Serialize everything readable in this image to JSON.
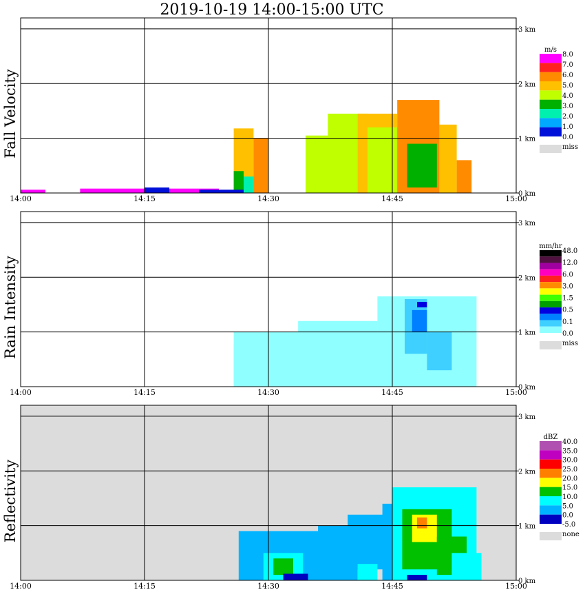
{
  "title": "2019-10-19   14:00-15:00 UTC",
  "colors": {
    "grid": "#000000",
    "missing": "#dcdcdc",
    "white_echo": "#ffffff"
  },
  "chart_data": [
    {
      "type": "heatmap",
      "name": "fall_velocity",
      "ylabel": "Fall Velocity",
      "x_ticks": [
        "14:00",
        "14:15",
        "14:30",
        "14:45",
        "15:00"
      ],
      "x_range": [
        "14:00",
        "15:00"
      ],
      "y_ticks": [
        "0 km",
        "1 km",
        "2 km",
        "3 km"
      ],
      "y_range_km": [
        0,
        3.2
      ],
      "background": "#ffffff",
      "colorbar": {
        "unit": "m/s",
        "labels": [
          "8.0",
          "7.0",
          "6.0",
          "5.0",
          "4.0",
          "3.0",
          "2.0",
          "1.0",
          "0.0"
        ],
        "colors": [
          "#ff00ff",
          "#ff2020",
          "#ff8c00",
          "#ffc000",
          "#c0ff00",
          "#00b000",
          "#00f0b0",
          "#00a8ff",
          "#0010d8"
        ],
        "missing_label": "miss"
      },
      "echoes": [
        {
          "t0": 14.43,
          "t1": 14.47,
          "h0": 0,
          "h1": 1.18,
          "level": 5
        },
        {
          "t0": 14.43,
          "t1": 14.45,
          "h0": 0,
          "h1": 0.4,
          "level": 3
        },
        {
          "t0": 14.47,
          "t1": 14.5,
          "h0": 0,
          "h1": 1.0,
          "level": 6
        },
        {
          "t0": 14.575,
          "t1": 14.72,
          "h0": 0,
          "h1": 1.05,
          "level": 4
        },
        {
          "t0": 14.62,
          "t1": 14.7,
          "h0": 0,
          "h1": 1.45,
          "level": 4
        },
        {
          "t0": 14.68,
          "t1": 14.76,
          "h0": 0,
          "h1": 1.45,
          "level": 5
        },
        {
          "t0": 14.7,
          "t1": 14.82,
          "h0": 0,
          "h1": 1.2,
          "level": 4
        },
        {
          "t0": 14.76,
          "t1": 14.845,
          "h0": 0,
          "h1": 1.7,
          "level": 6
        },
        {
          "t0": 14.845,
          "t1": 14.88,
          "h0": 0,
          "h1": 1.25,
          "level": 5
        },
        {
          "t0": 14.88,
          "t1": 14.91,
          "h0": 0,
          "h1": 0.6,
          "level": 6
        },
        {
          "t0": 14.45,
          "t1": 14.47,
          "h0": 0,
          "h1": 0.3,
          "level": 2
        },
        {
          "t0": 14.78,
          "t1": 14.84,
          "h0": 0.1,
          "h1": 0.9,
          "level": 3
        },
        {
          "t0": 14.12,
          "t1": 14.4,
          "h0": 0,
          "h1": 0.08,
          "level": 8
        },
        {
          "t0": 14.0,
          "t1": 14.05,
          "h0": 0,
          "h1": 0.06,
          "level": 8
        },
        {
          "t0": 14.25,
          "t1": 14.3,
          "h0": 0,
          "h1": 0.1,
          "level": 0
        },
        {
          "t0": 14.36,
          "t1": 14.45,
          "h0": 0,
          "h1": 0.06,
          "level": 0
        }
      ]
    },
    {
      "type": "heatmap",
      "name": "rain_intensity",
      "ylabel": "Rain Intensity",
      "x_ticks": [
        "14:00",
        "14:15",
        "14:30",
        "14:45",
        "15:00"
      ],
      "x_range": [
        "14:00",
        "15:00"
      ],
      "y_ticks": [
        "0 km",
        "1 km",
        "2 km",
        "3 km"
      ],
      "y_range_km": [
        0,
        3.2
      ],
      "background": "#ffffff",
      "colorbar": {
        "unit": "mm/hr",
        "labels": [
          "48.0",
          "12.0",
          "6.0",
          "3.0",
          "1.5",
          "0.5",
          "0.1",
          "0.0"
        ],
        "colors": [
          "#000000",
          "#501040",
          "#a000a0",
          "#ff00c0",
          "#ff2020",
          "#ff8c00",
          "#ffff00",
          "#40ff00",
          "#00a000",
          "#0000e0",
          "#0080ff",
          "#40d0ff",
          "#90ffff"
        ],
        "missing_label": "miss"
      },
      "echoes": [
        {
          "t0": 14.43,
          "t1": 14.78,
          "h0": 0,
          "h1": 1.0,
          "level": 0
        },
        {
          "t0": 14.56,
          "t1": 14.72,
          "h0": 0,
          "h1": 1.2,
          "level": 0
        },
        {
          "t0": 14.72,
          "t1": 14.92,
          "h0": 0,
          "h1": 1.65,
          "level": 0
        },
        {
          "t0": 14.775,
          "t1": 14.82,
          "h0": 0.6,
          "h1": 1.6,
          "level": 1
        },
        {
          "t0": 14.79,
          "t1": 14.82,
          "h0": 1.0,
          "h1": 1.4,
          "level": 2
        },
        {
          "t0": 14.82,
          "t1": 14.87,
          "h0": 0.3,
          "h1": 1.0,
          "level": 1
        },
        {
          "t0": 14.43,
          "t1": 14.48,
          "h0": 0,
          "h1": 0.8,
          "level": 0
        },
        {
          "t0": 14.58,
          "t1": 14.61,
          "h0": 0.2,
          "h1": 0.6,
          "level": 0
        },
        {
          "t0": 14.8,
          "t1": 14.82,
          "h0": 1.45,
          "h1": 1.55,
          "level": 3
        }
      ]
    },
    {
      "type": "heatmap",
      "name": "reflectivity",
      "ylabel": "Reflectivity",
      "x_ticks": [
        "14:00",
        "14:15",
        "14:30",
        "14:45",
        "15:00"
      ],
      "x_range": [
        "14:00",
        "15:00"
      ],
      "y_ticks": [
        "0 km",
        "1 km",
        "2 km",
        "3 km"
      ],
      "y_range_km": [
        0,
        3.2
      ],
      "background": "#dcdcdc",
      "colorbar": {
        "unit": "dBZ",
        "labels": [
          "40.0",
          "35.0",
          "30.0",
          "25.0",
          "20.0",
          "15.0",
          "10.0",
          "5.0",
          "0.0",
          "-5.0"
        ],
        "colors": [
          "#b050b0",
          "#c000c0",
          "#ff0000",
          "#ff8000",
          "#ffff00",
          "#00c000",
          "#00ffff",
          "#00b4ff",
          "#0000c0"
        ],
        "missing_label": "none"
      },
      "echoes": [
        {
          "t0": 14.44,
          "t1": 14.6,
          "h0": 0,
          "h1": 0.9,
          "level": 1
        },
        {
          "t0": 14.49,
          "t1": 14.57,
          "h0": 0,
          "h1": 0.5,
          "level": 2
        },
        {
          "t0": 14.51,
          "t1": 14.55,
          "h0": 0.1,
          "h1": 0.4,
          "level": 3
        },
        {
          "t0": 14.6,
          "t1": 14.68,
          "h0": 0,
          "h1": 1.0,
          "level": 1
        },
        {
          "t0": 14.66,
          "t1": 14.75,
          "h0": 0.2,
          "h1": 1.2,
          "level": 1
        },
        {
          "t0": 14.68,
          "t1": 14.72,
          "h0": 0,
          "h1": 0.3,
          "level": 2
        },
        {
          "t0": 14.73,
          "t1": 14.84,
          "h0": 0,
          "h1": 1.4,
          "level": 1
        },
        {
          "t0": 14.75,
          "t1": 14.92,
          "h0": 0,
          "h1": 1.7,
          "level": 2
        },
        {
          "t0": 14.77,
          "t1": 14.87,
          "h0": 0.2,
          "h1": 1.3,
          "level": 3
        },
        {
          "t0": 14.79,
          "t1": 14.84,
          "h0": 0.7,
          "h1": 1.2,
          "level": 4
        },
        {
          "t0": 14.8,
          "t1": 14.82,
          "h0": 0.95,
          "h1": 1.15,
          "level": 5
        },
        {
          "t0": 14.84,
          "t1": 14.9,
          "h0": 0.1,
          "h1": 0.8,
          "level": 3
        },
        {
          "t0": 14.87,
          "t1": 14.93,
          "h0": 0,
          "h1": 0.5,
          "level": 2
        },
        {
          "t0": 14.53,
          "t1": 14.58,
          "h0": 0,
          "h1": 0.12,
          "level": 0
        },
        {
          "t0": 14.78,
          "t1": 14.82,
          "h0": 0,
          "h1": 0.1,
          "level": 0
        }
      ]
    }
  ]
}
